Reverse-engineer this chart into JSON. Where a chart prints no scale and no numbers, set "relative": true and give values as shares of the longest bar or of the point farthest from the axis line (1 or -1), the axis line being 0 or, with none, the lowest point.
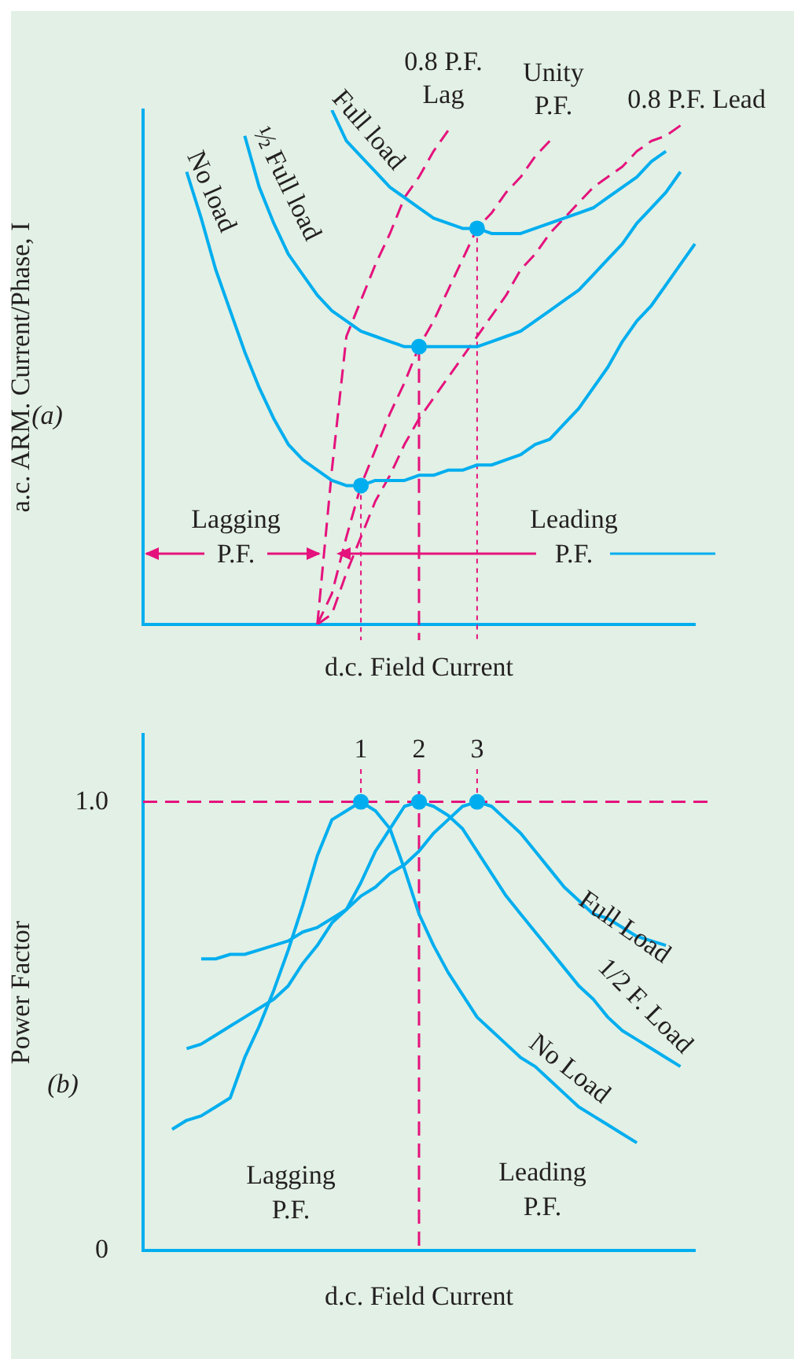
{
  "chart_data": [
    {
      "type": "line",
      "relative": true,
      "ylabel": "a.c. ARM. Current/Phase, I",
      "xlabel": "d.c. Field Current",
      "marker": "none",
      "categories": [
        null,
        null,
        null,
        null,
        null,
        null,
        null,
        null,
        null,
        null,
        null,
        null,
        null,
        null,
        null,
        null,
        null,
        null,
        null,
        null,
        null,
        null,
        null,
        null,
        null,
        null,
        null,
        null,
        null,
        null,
        null,
        null,
        null,
        null,
        null,
        null,
        null,
        null,
        null
      ],
      "series": [
        {
          "name": "No load",
          "color": "#00aeef",
          "values": [
            null,
            null,
            null,
            0.88,
            0.79,
            0.69,
            0.61,
            0.53,
            0.46,
            0.4,
            0.35,
            0.32,
            0.3,
            0.28,
            0.27,
            0.27,
            0.28,
            0.28,
            0.28,
            0.29,
            0.29,
            0.3,
            0.3,
            0.31,
            0.31,
            0.32,
            0.33,
            0.35,
            0.36,
            0.39,
            0.42,
            0.46,
            0.5,
            0.55,
            0.59,
            0.62,
            0.66,
            0.7,
            0.74
          ]
        },
        {
          "name": "½ Full load",
          "color": "#00aeef",
          "values": [
            null,
            null,
            null,
            null,
            null,
            null,
            null,
            0.95,
            0.85,
            0.78,
            0.72,
            0.68,
            0.64,
            0.61,
            0.59,
            0.57,
            0.56,
            0.55,
            0.54,
            0.54,
            0.54,
            0.54,
            0.54,
            0.54,
            0.55,
            0.56,
            0.57,
            0.59,
            0.61,
            0.63,
            0.65,
            0.68,
            0.71,
            0.74,
            0.78,
            0.81,
            0.84,
            0.88,
            null
          ]
        },
        {
          "name": "Full load",
          "color": "#00aeef",
          "values": [
            null,
            null,
            null,
            null,
            null,
            null,
            null,
            null,
            null,
            null,
            null,
            null,
            null,
            1.0,
            0.94,
            0.91,
            0.88,
            0.85,
            0.83,
            0.81,
            0.79,
            0.78,
            0.77,
            0.77,
            0.76,
            0.76,
            0.76,
            0.77,
            0.78,
            0.79,
            0.8,
            0.81,
            0.83,
            0.85,
            0.87,
            0.9,
            0.92,
            null,
            null
          ]
        },
        {
          "name": "0.8 P.F. Lag",
          "color": "#e5127d",
          "line_style": "dashed",
          "values": [
            null,
            null,
            null,
            null,
            null,
            null,
            null,
            null,
            null,
            null,
            null,
            null,
            0,
            0.3,
            0.56,
            0.63,
            0.7,
            0.76,
            0.83,
            0.87,
            0.92,
            0.96,
            null,
            null,
            null,
            null,
            null,
            null,
            null,
            null,
            null,
            null,
            null,
            null,
            null,
            null,
            null,
            null,
            null
          ]
        },
        {
          "name": "Unity P.F.",
          "color": "#e5127d",
          "line_style": "dashed",
          "values": [
            null,
            null,
            null,
            null,
            null,
            null,
            null,
            null,
            null,
            null,
            null,
            null,
            0,
            0.06,
            0.17,
            0.27,
            0.34,
            0.41,
            0.47,
            0.54,
            0.59,
            0.65,
            0.71,
            0.77,
            0.8,
            0.84,
            0.87,
            0.91,
            0.94,
            null,
            null,
            null,
            null,
            null,
            null,
            null,
            null,
            null,
            null
          ]
        },
        {
          "name": "0.8 P.F. Lead",
          "color": "#e5127d",
          "line_style": "dashed",
          "values": [
            null,
            null,
            null,
            null,
            null,
            null,
            null,
            null,
            null,
            null,
            null,
            null,
            0,
            0.02,
            0.1,
            0.17,
            0.24,
            0.29,
            0.35,
            0.4,
            0.44,
            0.48,
            0.52,
            0.56,
            0.6,
            0.64,
            0.69,
            0.72,
            0.76,
            0.79,
            0.82,
            0.85,
            0.87,
            0.89,
            0.92,
            0.94,
            0.95,
            0.97,
            null
          ]
        }
      ],
      "annotations": [
        "(a)",
        "Lagging P.F.",
        "Leading P.F."
      ]
    },
    {
      "type": "line",
      "ylabel": "Power Factor",
      "xlabel": "d.c. Field Current",
      "marker": "none",
      "tick_labels": "y",
      "ylim": [
        0,
        1.15
      ],
      "yticks": [
        0,
        {
          "value": 1,
          "label": "1.0"
        }
      ],
      "categories": [
        null,
        null,
        null,
        null,
        null,
        null,
        null,
        null,
        null,
        null,
        null,
        null,
        null,
        null,
        null,
        null,
        null,
        null,
        null,
        null,
        null,
        null,
        null,
        null,
        null,
        null,
        null,
        null,
        null,
        null,
        null,
        null,
        null,
        null,
        null,
        null,
        null,
        null,
        null
      ],
      "series": [
        {
          "name": "No Load",
          "color": "#00aeef",
          "values": [
            null,
            null,
            0.27,
            0.29,
            0.3,
            0.32,
            0.34,
            0.43,
            0.5,
            0.58,
            0.67,
            0.77,
            0.88,
            0.96,
            0.98,
            1.0,
            0.98,
            0.94,
            0.85,
            0.75,
            0.68,
            0.62,
            0.57,
            0.52,
            0.49,
            0.46,
            0.43,
            0.41,
            0.38,
            0.35,
            0.32,
            0.3,
            0.28,
            0.26,
            0.24,
            null,
            null,
            null,
            null
          ]
        },
        {
          "name": "1/2 F. Load",
          "color": "#00aeef",
          "values": [
            null,
            null,
            null,
            0.45,
            0.46,
            0.48,
            0.5,
            0.52,
            0.54,
            0.56,
            0.59,
            0.64,
            0.68,
            0.73,
            0.76,
            0.82,
            0.89,
            0.94,
            0.99,
            1.0,
            0.99,
            0.97,
            0.94,
            0.89,
            0.84,
            0.79,
            0.75,
            0.71,
            0.67,
            0.63,
            0.59,
            0.56,
            0.52,
            0.49,
            0.47,
            0.45,
            0.43,
            0.41,
            null
          ]
        },
        {
          "name": "Full Load",
          "color": "#00aeef",
          "values": [
            null,
            null,
            null,
            null,
            0.65,
            0.65,
            0.66,
            0.66,
            0.67,
            0.68,
            0.69,
            0.71,
            0.72,
            0.74,
            0.76,
            0.79,
            0.81,
            0.84,
            0.86,
            0.89,
            0.93,
            0.96,
            0.99,
            1.0,
            0.99,
            0.96,
            0.93,
            0.89,
            0.85,
            0.81,
            0.78,
            0.75,
            0.74,
            0.72,
            0.7,
            0.69,
            0.68,
            null,
            null
          ]
        },
        {
          "type": "scatter",
          "marker": "circle",
          "color": "#00aeef",
          "values": [
            null,
            null,
            null,
            null,
            null,
            null,
            null,
            null,
            null,
            null,
            null,
            null,
            null,
            null,
            null,
            1,
            null,
            null,
            null,
            1,
            null,
            null,
            null,
            1,
            null,
            null,
            null,
            null,
            null,
            null,
            null,
            null,
            null,
            null,
            null,
            null,
            null,
            null,
            null
          ]
        }
      ],
      "ref_lines": [
        {
          "axis": "y",
          "value": 1,
          "color": "#e5127d",
          "line_style": "dashed"
        }
      ],
      "annotations": [
        "(b)",
        "Lagging P.F.",
        "Leading P.F.",
        "1",
        "2",
        "3"
      ]
    }
  ]
}
